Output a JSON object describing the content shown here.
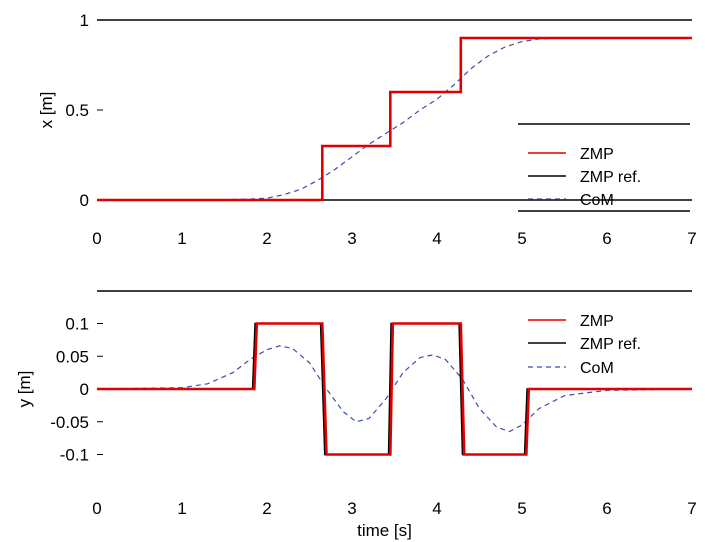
{
  "chart_data": [
    {
      "type": "line",
      "xlabel": "",
      "ylabel": "x [m]",
      "xlim": [
        0,
        7
      ],
      "ylim": [
        0,
        1
      ],
      "xticks": [
        "0",
        "1",
        "2",
        "3",
        "4",
        "5",
        "6",
        "7"
      ],
      "yticks": [
        "0",
        "0.5",
        "1"
      ],
      "legend": {
        "placement": "lower-right"
      },
      "series": [
        {
          "name": "ZMP",
          "color": "#e00000",
          "style": "solid",
          "x": [
            0,
            2.65,
            2.65,
            3.45,
            3.45,
            4.28,
            4.28,
            7
          ],
          "y": [
            0,
            0,
            0.3,
            0.3,
            0.6,
            0.6,
            0.9,
            0.9
          ]
        },
        {
          "name": "ZMP ref.",
          "color": "#000000",
          "style": "solid",
          "x": [
            0,
            2.65,
            2.65,
            3.45,
            3.45,
            4.28,
            4.28,
            7
          ],
          "y": [
            0,
            0,
            0.3,
            0.3,
            0.6,
            0.6,
            0.9,
            0.9
          ]
        },
        {
          "name": "CoM",
          "color": "#3a4fb0",
          "style": "dashed",
          "x": [
            0,
            1.0,
            1.5,
            1.8,
            2.0,
            2.2,
            2.4,
            2.6,
            2.8,
            3.0,
            3.2,
            3.4,
            3.6,
            3.8,
            4.0,
            4.2,
            4.4,
            4.6,
            4.8,
            5.0,
            5.2,
            5.5,
            6.0,
            7.0
          ],
          "y": [
            0,
            0,
            0.002,
            0.005,
            0.01,
            0.03,
            0.06,
            0.11,
            0.17,
            0.24,
            0.31,
            0.37,
            0.43,
            0.5,
            0.56,
            0.64,
            0.73,
            0.8,
            0.85,
            0.88,
            0.895,
            0.9,
            0.9,
            0.9
          ]
        }
      ]
    },
    {
      "type": "line",
      "xlabel": "time [s]",
      "ylabel": "y [m]",
      "xlim": [
        0,
        7
      ],
      "ylim": [
        -0.15,
        0.15
      ],
      "xticks": [
        "0",
        "1",
        "2",
        "3",
        "4",
        "5",
        "6",
        "7"
      ],
      "yticks": [
        "0.1",
        "0.05",
        "0",
        "-0.05",
        "-0.1"
      ],
      "legend": {
        "placement": "top-right"
      },
      "series": [
        {
          "name": "ZMP",
          "color": "#e00000",
          "style": "solid",
          "x": [
            0,
            1.85,
            1.88,
            2.65,
            2.7,
            3.45,
            3.48,
            4.28,
            4.32,
            5.05,
            5.08,
            7
          ],
          "y": [
            0,
            0,
            0.1,
            0.1,
            -0.1,
            -0.1,
            0.1,
            0.1,
            -0.1,
            -0.1,
            0,
            0
          ]
        },
        {
          "name": "ZMP ref.",
          "color": "#000000",
          "style": "solid",
          "x": [
            0,
            1.83,
            1.86,
            2.63,
            2.68,
            3.43,
            3.46,
            4.26,
            4.3,
            5.03,
            5.06,
            7
          ],
          "y": [
            0,
            0,
            0.1,
            0.1,
            -0.1,
            -0.1,
            0.1,
            0.1,
            -0.1,
            -0.1,
            0,
            0
          ]
        },
        {
          "name": "CoM",
          "color": "#3a4fb0",
          "style": "dashed",
          "x": [
            0,
            1.0,
            1.3,
            1.6,
            1.8,
            2.0,
            2.15,
            2.3,
            2.5,
            2.7,
            2.9,
            3.05,
            3.2,
            3.4,
            3.6,
            3.8,
            3.95,
            4.1,
            4.3,
            4.5,
            4.7,
            4.85,
            5.0,
            5.2,
            5.5,
            6.0,
            7.0
          ],
          "y": [
            0,
            0.002,
            0.008,
            0.025,
            0.045,
            0.06,
            0.066,
            0.062,
            0.04,
            0.0,
            -0.035,
            -0.05,
            -0.045,
            -0.015,
            0.025,
            0.048,
            0.052,
            0.045,
            0.015,
            -0.03,
            -0.058,
            -0.065,
            -0.055,
            -0.03,
            -0.01,
            -0.002,
            0
          ]
        }
      ]
    }
  ]
}
